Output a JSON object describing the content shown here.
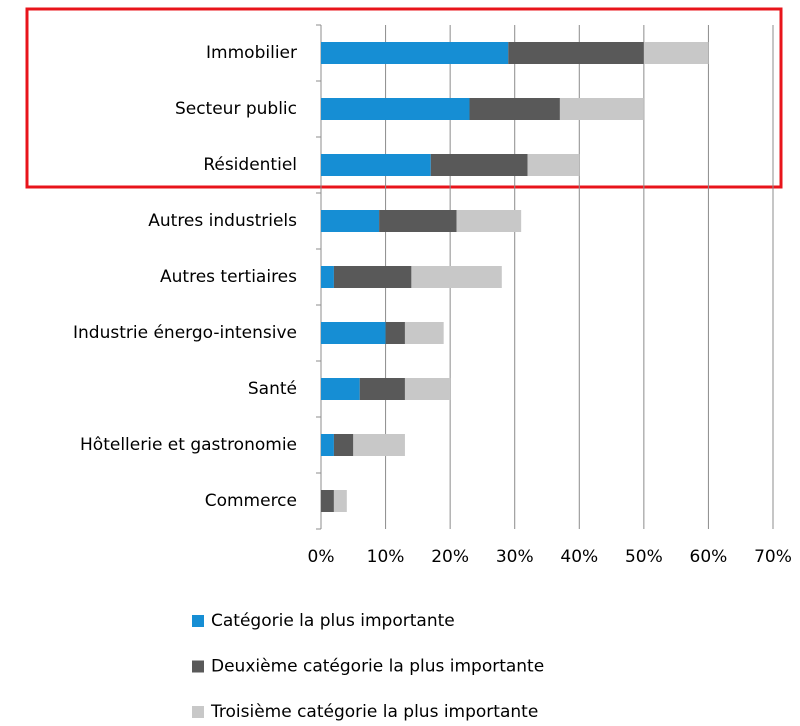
{
  "chart_data": {
    "type": "stacked_bar_horizontal",
    "categories": [
      "Immobilier",
      "Secteur public",
      "Résidentiel",
      "Autres industriels",
      "Autres tertiaires",
      "Industrie énergo-intensive",
      "Santé",
      "Hôtellerie et gastronomie",
      "Commerce"
    ],
    "series": [
      {
        "name": "Catégorie la plus importante",
        "color": "#168ed4",
        "values": [
          29,
          23,
          17,
          9,
          2,
          10,
          6,
          2,
          0
        ]
      },
      {
        "name": "Deuxième catégorie la plus importante",
        "color": "#595959",
        "values": [
          21,
          14,
          15,
          12,
          12,
          3,
          7,
          3,
          2
        ]
      },
      {
        "name": "Troisième catégorie la plus importante",
        "color": "#c8c8c8",
        "values": [
          10,
          13,
          8,
          10,
          14,
          6,
          7,
          8,
          2
        ]
      }
    ],
    "xlim": [
      0,
      70
    ],
    "xticks": [
      {
        "value": 0,
        "label": "0%"
      },
      {
        "value": 10,
        "label": "10%"
      },
      {
        "value": 20,
        "label": "20%"
      },
      {
        "value": 30,
        "label": "30%"
      },
      {
        "value": 40,
        "label": "40%"
      },
      {
        "value": 50,
        "label": "50%"
      },
      {
        "value": 60,
        "label": "60%"
      },
      {
        "value": 70,
        "label": "70%"
      }
    ],
    "grid": true
  }
}
